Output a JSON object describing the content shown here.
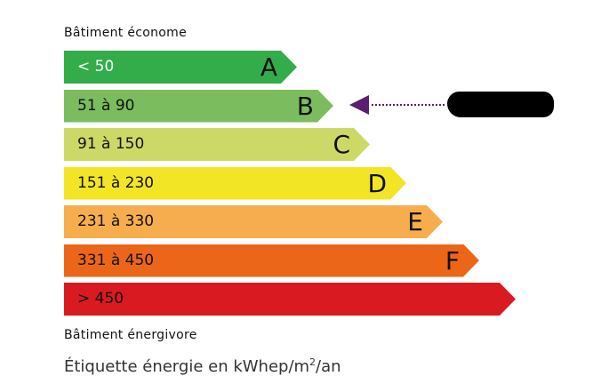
{
  "top_label": "Bâtiment économe",
  "bottom_label": "Bâtiment énergivore",
  "footer": {
    "text": "Étiquette énergie en kWhep/m",
    "sup": "2",
    "suffix": "/an"
  },
  "classes": [
    {
      "range": "< 50",
      "letter": "A",
      "color": "#33ac4a"
    },
    {
      "range": "51 à 90",
      "letter": "B",
      "color": "#7bbd5e"
    },
    {
      "range": "91 à 150",
      "letter": "C",
      "color": "#cdd966"
    },
    {
      "range": "151 à 230",
      "letter": "D",
      "color": "#f2e526"
    },
    {
      "range": "231 à 330",
      "letter": "E",
      "color": "#f6ad4d"
    },
    {
      "range": "331 à 450",
      "letter": "F",
      "color": "#eb6619"
    },
    {
      "range": "> 450",
      "letter": "",
      "color": "#d91b21"
    }
  ],
  "current_class": "B",
  "marker_color": "#5a1f6e"
}
